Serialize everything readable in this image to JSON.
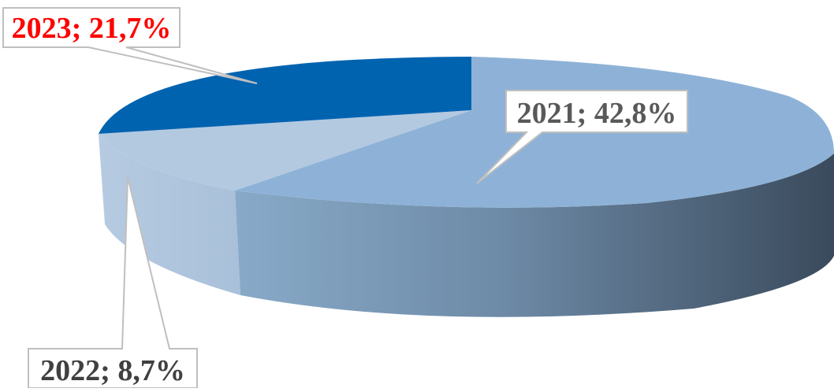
{
  "chart_data": {
    "type": "pie",
    "style": "3d-exploded-perspective",
    "categories": [
      "2021",
      "2022",
      "2023"
    ],
    "values": [
      42.8,
      8.7,
      21.7
    ],
    "data_labels": [
      "2021; 42,8%",
      "2022; 8,7%",
      "2023; 21,7%"
    ],
    "label_colors": [
      "#595959",
      "#404040",
      "#ff0000"
    ],
    "slice_colors": {
      "2021": "#8db1d6",
      "2022": "#b2c8df",
      "2023": "#0063b0"
    },
    "legend": "none"
  }
}
